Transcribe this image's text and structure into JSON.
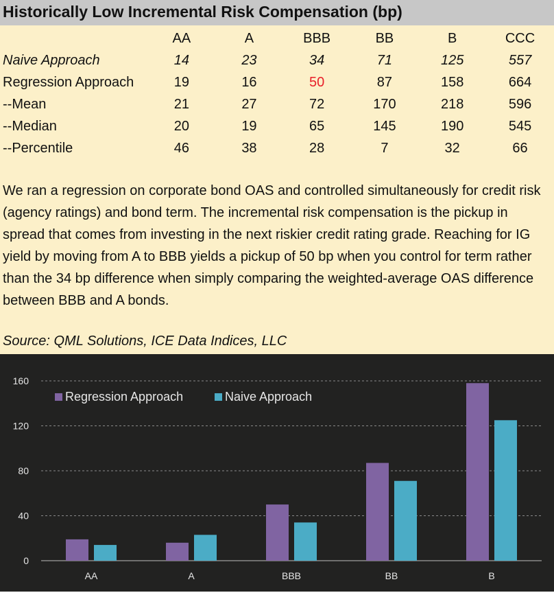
{
  "title": "Historically Low Incremental Risk Compensation (bp)",
  "table": {
    "columns": [
      "AA",
      "A",
      "BBB",
      "BB",
      "B",
      "CCC"
    ],
    "rows": [
      {
        "label": "Naive Approach",
        "values": [
          "14",
          "23",
          "34",
          "71",
          "125",
          "557"
        ]
      },
      {
        "label": "Regression Approach",
        "values": [
          "19",
          "16",
          "50",
          "87",
          "158",
          "664"
        ]
      },
      {
        "label": "--Mean",
        "values": [
          "21",
          "27",
          "72",
          "170",
          "218",
          "596"
        ]
      },
      {
        "label": "--Median",
        "values": [
          "20",
          "19",
          "65",
          "145",
          "190",
          "545"
        ]
      },
      {
        "label": "--Percentile",
        "values": [
          "46",
          "38",
          "28",
          "7",
          "32",
          "66"
        ]
      }
    ]
  },
  "paragraph": "We ran a regression on corporate bond OAS and controlled simultaneously for credit risk (agency ratings) and bond term. The incremental risk compensation is the pickup in spread that comes from investing in the next riskier credit rating grade. Reaching for IG yield by moving from A to BBB yields a pickup of 50 bp when you control for term rather than the 34 bp difference when simply comparing the weighted-average OAS difference between BBB and A bonds.",
  "source": "Source: QML Solutions, ICE Data Indices, LLC",
  "colors": {
    "regression": "#8064a2",
    "naive": "#4bacc6",
    "highlight": "#e8202a",
    "chart_bg": "#222221"
  },
  "chart_data": {
    "type": "bar",
    "categories": [
      "AA",
      "A",
      "BBB",
      "BB",
      "B"
    ],
    "series": [
      {
        "name": "Regression Approach",
        "values": [
          19,
          16,
          50,
          87,
          158
        ]
      },
      {
        "name": "Naive Approach",
        "values": [
          14,
          23,
          34,
          71,
          125
        ]
      }
    ],
    "yticks": [
      0,
      40,
      80,
      120,
      160
    ],
    "ylim": [
      0,
      160
    ],
    "grid": true,
    "legend": "top-left",
    "title": "",
    "xlabel": "",
    "ylabel": ""
  }
}
